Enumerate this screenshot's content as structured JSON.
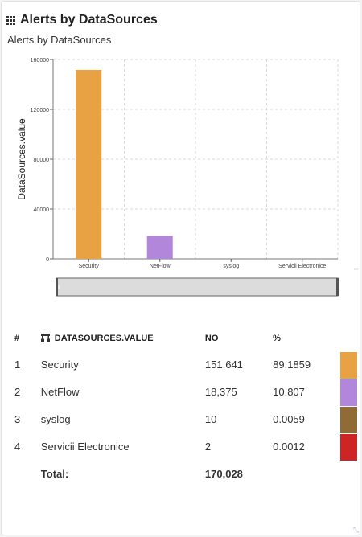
{
  "widget": {
    "title": "Alerts by DataSources",
    "title_icon": "grid-icon",
    "resize_icon": "resize-icon"
  },
  "chart_data": {
    "type": "bar",
    "title": "Alerts by DataSources",
    "xlabel": "",
    "ylabel": "DataSources.value",
    "categories": [
      "Security",
      "NetFlow",
      "syslog",
      "Servicii Electronice"
    ],
    "values": [
      151641,
      18375,
      10,
      2
    ],
    "colors": [
      "#e8a244",
      "#b286db",
      "#916b36",
      "#cf2424"
    ],
    "ylim": [
      0,
      160000
    ],
    "yticks": [
      0,
      40000,
      80000,
      120000,
      160000
    ],
    "ytick_labels": [
      "0",
      "40000",
      "80000",
      "120000",
      "160000"
    ],
    "grid": true,
    "legend": "none"
  },
  "table": {
    "headers": {
      "idx": "#",
      "name": "DATASOURCES.VALUE",
      "value": "NO",
      "pct": "%"
    },
    "rows": [
      {
        "idx": "1",
        "name": "Security",
        "value": "151,641",
        "pct": "89.1859",
        "color": "#e8a244"
      },
      {
        "idx": "2",
        "name": "NetFlow",
        "value": "18,375",
        "pct": "10.807",
        "color": "#b286db"
      },
      {
        "idx": "3",
        "name": "syslog",
        "value": "10",
        "pct": "0.0059",
        "color": "#916b36"
      },
      {
        "idx": "4",
        "name": "Servicii Electronice",
        "value": "2",
        "pct": "0.0012",
        "color": "#cf2424"
      }
    ],
    "total_label": "Total:",
    "total_value": "170,028"
  }
}
